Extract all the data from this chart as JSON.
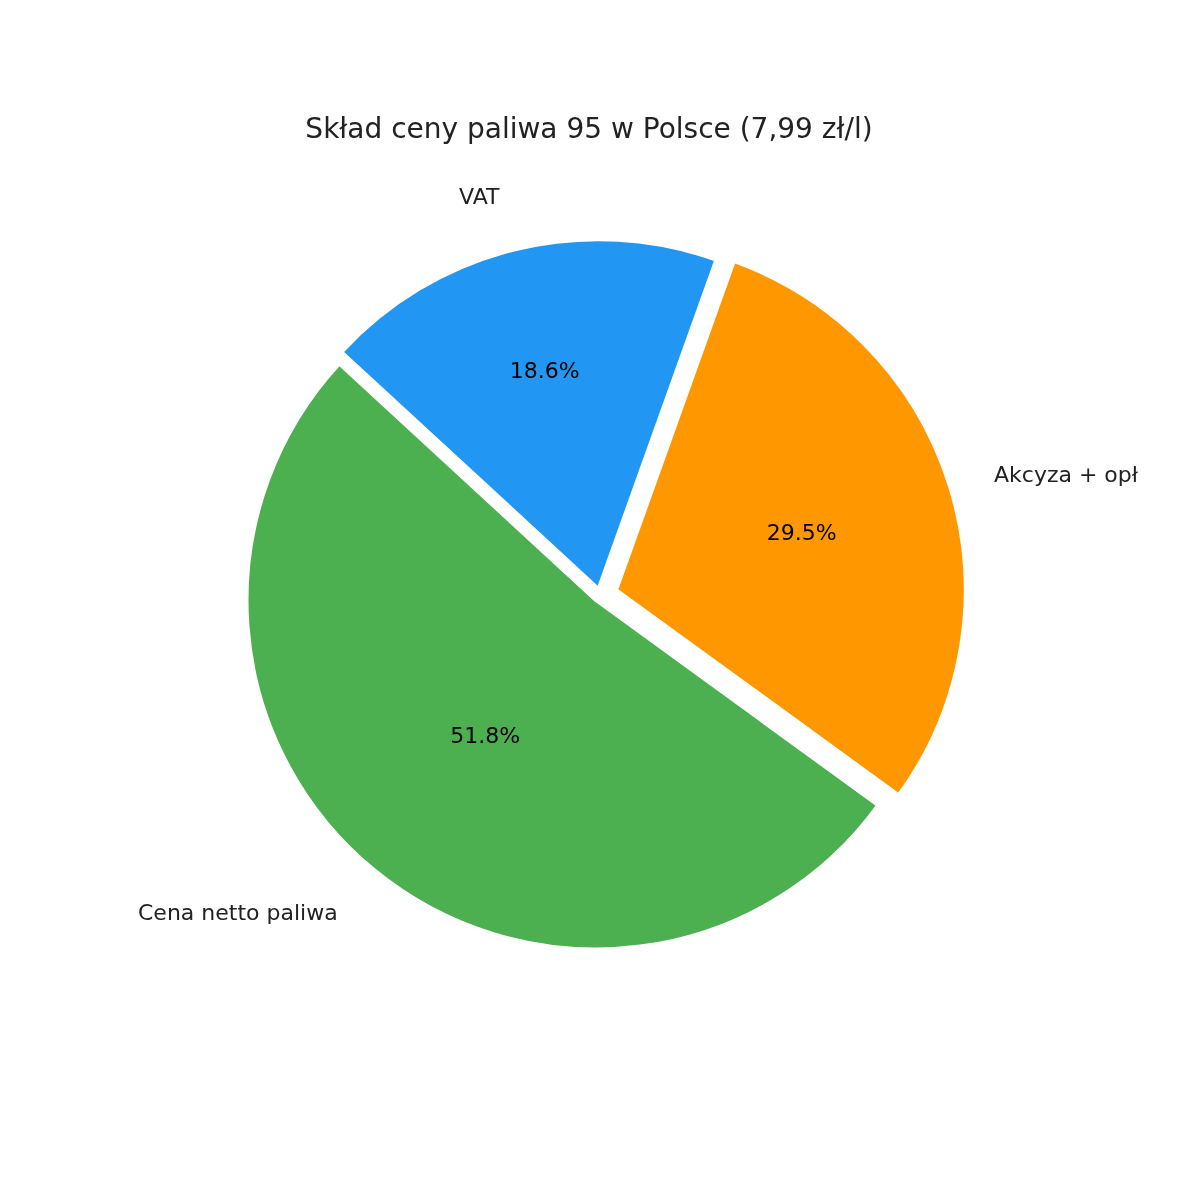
{
  "chart_data": {
    "type": "pie",
    "title": "Skład ceny paliwa 95 w Polsce (7,99 zł/l)",
    "categories": [
      "Akcyza + opł",
      "VAT",
      "Cena netto paliwa"
    ],
    "values": [
      29.5,
      18.6,
      51.8
    ],
    "colors": [
      "#ff9800",
      "#2196f3",
      "#4caf50"
    ],
    "value_labels": [
      "29.5%",
      "18.6%",
      "51.8%"
    ],
    "legend": false
  }
}
